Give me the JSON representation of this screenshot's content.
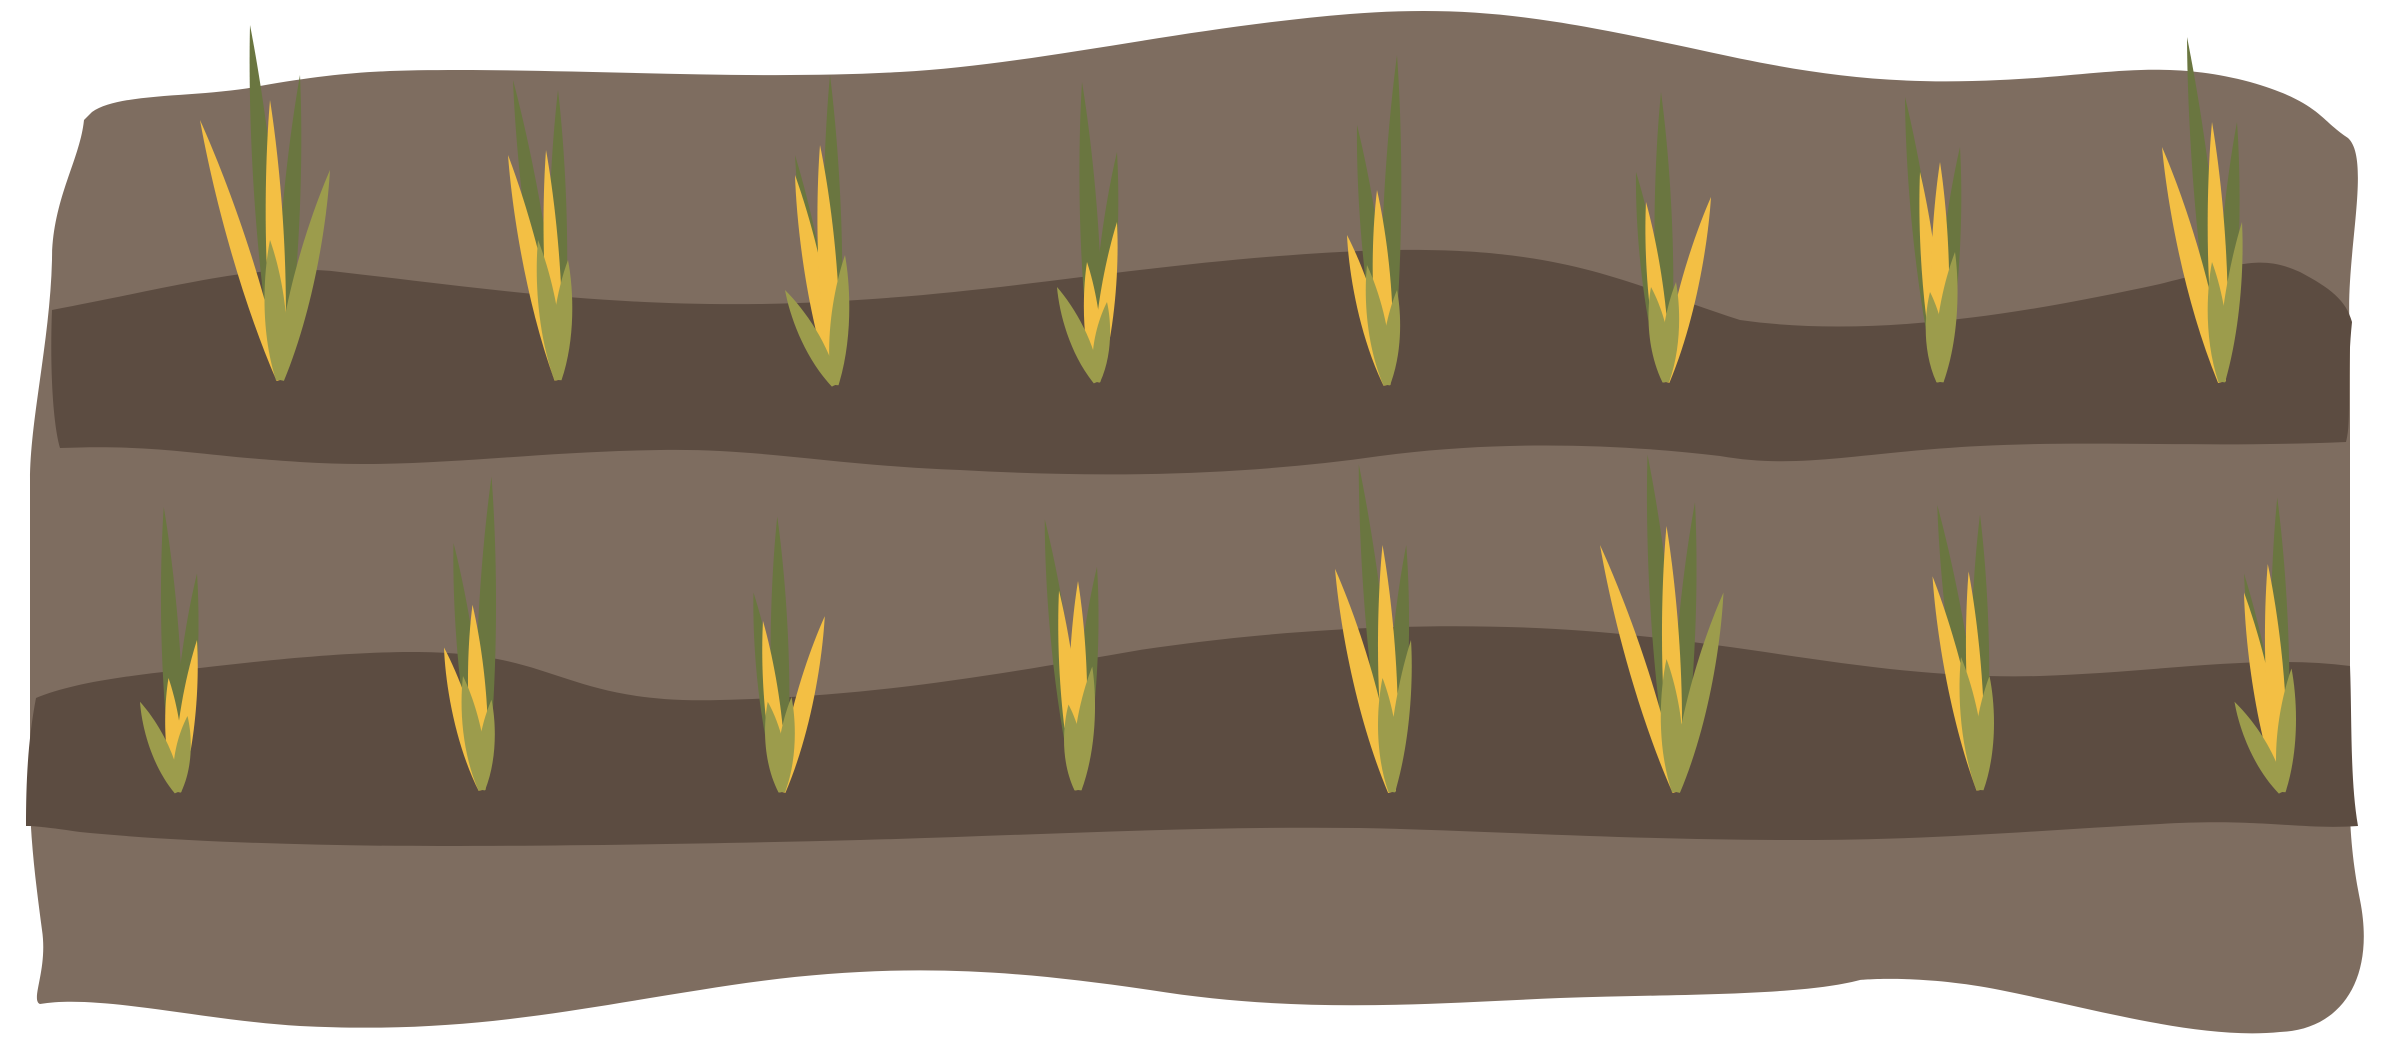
{
  "colors": {
    "background": "#ffffff",
    "soil_light": "#7e6d60",
    "soil_dark": "#5c4c41",
    "leaf_dark": "#6a7640",
    "leaf_olive": "#9c9c4c",
    "leaf_yellow": "#f3bf44"
  },
  "field": {
    "rows": [
      {
        "name": "top-row",
        "plant_count": 8
      },
      {
        "name": "bottom-row",
        "plant_count": 8
      }
    ]
  }
}
